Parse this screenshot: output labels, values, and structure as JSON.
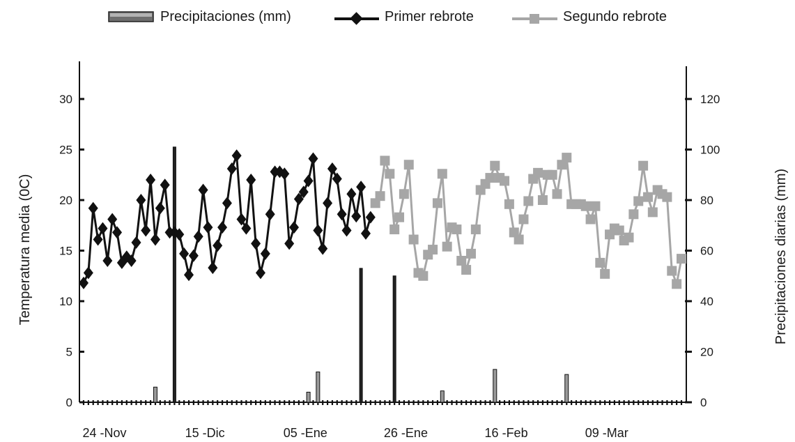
{
  "chart_data": {
    "type": "line",
    "title": "",
    "ylabel_left": "Temperatura media (0C)",
    "ylabel_right": "Precipitaciones diarias (mm)",
    "xlabel": "",
    "x_tick_labels": [
      "24 -Nov",
      "15 -Dic",
      "05 -Ene",
      "26 -Ene",
      "16 -Feb",
      "09 -Mar"
    ],
    "y_left": {
      "ticks": [
        0,
        5,
        10,
        15,
        20,
        25,
        30
      ],
      "range": [
        0,
        34
      ]
    },
    "y_right": {
      "ticks": [
        0,
        20,
        40,
        60,
        80,
        100,
        120
      ],
      "range": [
        0,
        136
      ]
    },
    "legend": {
      "position": "top",
      "items": [
        {
          "label": "Precipitaciones (mm)",
          "kind": "bar"
        },
        {
          "label": "Primer rebrote",
          "kind": "line-diamond"
        },
        {
          "label": "Segundo rebrote",
          "kind": "line-square"
        }
      ]
    },
    "colors": {
      "primer": "#111111",
      "segundo": "#a6a6a6",
      "precip": "#222222"
    },
    "series": [
      {
        "name": "Primer rebrote",
        "color": "#111111",
        "marker": "diamond",
        "x_day_start": 0,
        "values": [
          11.8,
          12.8,
          19.2,
          16.1,
          17.2,
          14.0,
          18.1,
          16.8,
          13.8,
          14.4,
          14.0,
          15.8,
          20.0,
          17.0,
          22.0,
          16.1,
          19.2,
          21.5,
          16.8,
          16.8,
          16.6,
          14.7,
          12.6,
          14.5,
          16.4,
          21.0,
          17.3,
          13.3,
          15.5,
          17.3,
          19.7,
          23.1,
          24.4,
          18.1,
          17.2,
          22.0,
          15.7,
          12.8,
          14.7,
          18.6,
          22.8,
          22.8,
          22.6,
          15.7,
          17.3,
          20.1,
          20.8,
          21.9,
          24.1,
          17.0,
          15.2,
          19.7,
          23.1,
          22.1,
          18.6,
          17.0,
          20.6,
          18.4,
          21.3,
          16.7,
          18.3
        ]
      },
      {
        "name": "Segundo rebrote",
        "color": "#a6a6a6",
        "marker": "square",
        "x_day_start": 61,
        "values": [
          19.7,
          20.4,
          23.9,
          22.6,
          17.1,
          18.3,
          20.6,
          23.5,
          16.1,
          12.8,
          12.5,
          14.6,
          15.1,
          19.7,
          22.6,
          15.4,
          17.3,
          17.1,
          14.0,
          13.1,
          14.7,
          17.1,
          21.0,
          21.6,
          22.2,
          23.4,
          22.2,
          21.9,
          19.6,
          16.8,
          16.1,
          18.1,
          19.9,
          22.1,
          22.7,
          20.0,
          22.5,
          22.5,
          20.6,
          23.5,
          24.2,
          19.6,
          19.6,
          19.6,
          19.4,
          18.1,
          19.4,
          13.8,
          12.7,
          16.6,
          17.2,
          17.0,
          16.0,
          16.3,
          18.6,
          19.9,
          23.4,
          20.3,
          18.8,
          21.0,
          20.6,
          20.3,
          13.0,
          11.7,
          14.2
        ]
      }
    ],
    "precipitation_mm": {
      "name": "Precipitaciones (mm)",
      "axis": "right",
      "bars": [
        {
          "day": 15,
          "mm": 6
        },
        {
          "day": 19,
          "mm": 101
        },
        {
          "day": 47,
          "mm": 4
        },
        {
          "day": 49,
          "mm": 12
        },
        {
          "day": 58,
          "mm": 53
        },
        {
          "day": 65,
          "mm": 50
        },
        {
          "day": 75,
          "mm": 4.5
        },
        {
          "day": 86,
          "mm": 13
        },
        {
          "day": 101,
          "mm": 11
        }
      ]
    },
    "days_total": 126,
    "grid": false
  }
}
